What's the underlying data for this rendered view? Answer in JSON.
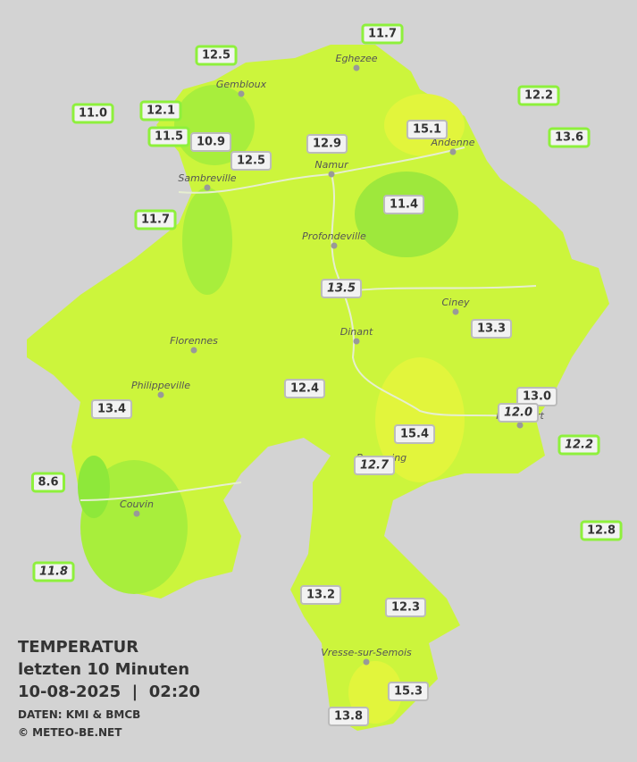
{
  "map": {
    "title": "TEMPERATUR",
    "subtitle": "letzten 10 Minuten",
    "datetime": "10-08-2025  |  02:20",
    "source": "DATEN: KMI & BMCB",
    "copyright": "© METEO-BE.NET",
    "cities": [
      "Eghezee",
      "Gembloux",
      "Andenne",
      "Namur",
      "Sambreville",
      "Profondeville",
      "Ciney",
      "Dinant",
      "Florennes",
      "Philippeville",
      "Rochefort",
      "Beauraing",
      "Couvin",
      "Vresse-sur-Semois"
    ],
    "stations": [
      {
        "value": "12.5",
        "outside": true
      },
      {
        "value": "11.7",
        "outside": true
      },
      {
        "value": "12.1",
        "outside": true
      },
      {
        "value": "11.0",
        "outside": true
      },
      {
        "value": "11.5",
        "outside": true
      },
      {
        "value": "10.9"
      },
      {
        "value": "12.5"
      },
      {
        "value": "12.9"
      },
      {
        "value": "15.1"
      },
      {
        "value": "12.2",
        "outside": true
      },
      {
        "value": "13.6",
        "outside": true
      },
      {
        "value": "11.4"
      },
      {
        "value": "11.7",
        "outside": true
      },
      {
        "value": "13.5",
        "italic": true
      },
      {
        "value": "13.3"
      },
      {
        "value": "12.4"
      },
      {
        "value": "13.0"
      },
      {
        "value": "12.0",
        "italic": true
      },
      {
        "value": "13.4"
      },
      {
        "value": "12.2",
        "outside": true,
        "italic": true
      },
      {
        "value": "15.4"
      },
      {
        "value": "12.7",
        "italic": true
      },
      {
        "value": "8.6",
        "outside": true
      },
      {
        "value": "12.8",
        "outside": true
      },
      {
        "value": "11.8",
        "outside": true,
        "italic": true
      },
      {
        "value": "13.2"
      },
      {
        "value": "12.3"
      },
      {
        "value": "15.3"
      },
      {
        "value": "13.8"
      }
    ]
  }
}
